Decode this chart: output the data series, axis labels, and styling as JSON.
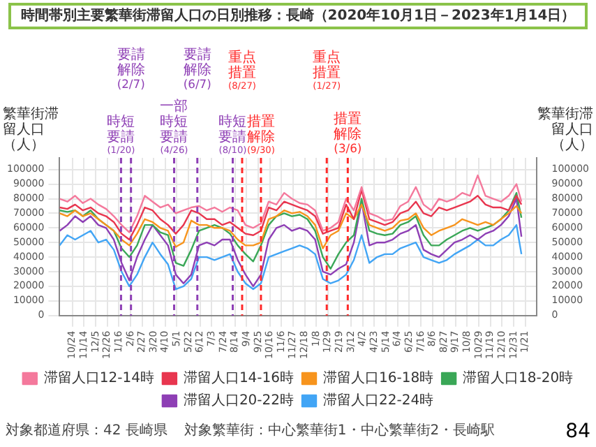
{
  "chart_data": {
    "type": "line",
    "title": "時間帯別主要繁華街滞留人口の日別推移：長崎（2020年10月1日－2023年1月14日）",
    "ylabel": "繁華街滞留人口（人）",
    "y2label": "繁華街滞留人口（人）",
    "x": [
      "2020-10-01",
      "2020-10-15",
      "2020-10-29",
      "2020-11-12",
      "2020-11-26",
      "2020-12-10",
      "2020-12-24",
      "2021-01-07",
      "2021-01-21",
      "2021-02-04",
      "2021-02-18",
      "2021-03-04",
      "2021-03-18",
      "2021-04-01",
      "2021-04-15",
      "2021-04-29",
      "2021-05-13",
      "2021-05-27",
      "2021-06-10",
      "2021-06-24",
      "2021-07-08",
      "2021-07-22",
      "2021-08-05",
      "2021-08-19",
      "2021-09-02",
      "2021-09-16",
      "2021-09-30",
      "2021-10-14",
      "2021-10-28",
      "2021-11-11",
      "2021-11-25",
      "2021-12-09",
      "2021-12-23",
      "2022-01-06",
      "2022-01-20",
      "2022-02-03",
      "2022-02-17",
      "2022-03-03",
      "2022-03-17",
      "2022-03-31",
      "2022-04-14",
      "2022-04-28",
      "2022-05-12",
      "2022-05-26",
      "2022-06-09",
      "2022-06-23",
      "2022-07-07",
      "2022-07-21",
      "2022-08-04",
      "2022-08-18",
      "2022-09-01",
      "2022-09-15",
      "2022-09-29",
      "2022-10-13",
      "2022-10-27",
      "2022-11-10",
      "2022-11-24",
      "2022-12-08",
      "2022-12-22",
      "2023-01-05",
      "2023-01-14"
    ],
    "series": [
      {
        "name": "滞留人口12-14時",
        "color": "#f4799c",
        "values": [
          80000,
          78000,
          82000,
          77000,
          80000,
          76000,
          73000,
          68000,
          62000,
          57000,
          68000,
          82000,
          78000,
          74000,
          76000,
          70000,
          72000,
          74000,
          75000,
          72000,
          74000,
          71000,
          74000,
          72000,
          62000,
          60000,
          63000,
          78000,
          76000,
          84000,
          80000,
          77000,
          76000,
          72000,
          58000,
          60000,
          64000,
          80000,
          72000,
          88000,
          70000,
          68000,
          65000,
          66000,
          75000,
          78000,
          88000,
          76000,
          72000,
          80000,
          78000,
          80000,
          84000,
          82000,
          96000,
          82000,
          80000,
          78000,
          82000,
          90000,
          78000
        ]
      },
      {
        "name": "滞留人口14-16時",
        "color": "#e8364f",
        "values": [
          74000,
          73000,
          76000,
          72000,
          74000,
          70000,
          68000,
          64000,
          56000,
          52000,
          62000,
          74000,
          72000,
          66000,
          62000,
          56000,
          62000,
          72000,
          70000,
          66000,
          66000,
          62000,
          64000,
          60000,
          56000,
          55000,
          58000,
          74000,
          72000,
          78000,
          76000,
          74000,
          72000,
          68000,
          56000,
          58000,
          60000,
          76000,
          66000,
          86000,
          66000,
          64000,
          62000,
          64000,
          70000,
          72000,
          78000,
          70000,
          68000,
          74000,
          72000,
          74000,
          76000,
          78000,
          82000,
          76000,
          74000,
          74000,
          72000,
          82000,
          76000
        ]
      },
      {
        "name": "滞留人口16-18時",
        "color": "#f7941d",
        "values": [
          70000,
          68000,
          72000,
          68000,
          70000,
          66000,
          62000,
          58000,
          52000,
          48000,
          56000,
          66000,
          64000,
          60000,
          58000,
          47000,
          50000,
          65000,
          62000,
          62000,
          60000,
          60000,
          58000,
          52000,
          48000,
          48000,
          50000,
          66000,
          68000,
          72000,
          70000,
          71000,
          68000,
          62000,
          46000,
          55000,
          58000,
          70000,
          66000,
          76000,
          62000,
          60000,
          58000,
          60000,
          65000,
          66000,
          70000,
          60000,
          55000,
          58000,
          60000,
          62000,
          66000,
          64000,
          62000,
          64000,
          62000,
          66000,
          70000,
          75000,
          70000
        ]
      },
      {
        "name": "滞留人口18-20時",
        "color": "#3aa757",
        "values": [
          72000,
          71000,
          72000,
          68000,
          72000,
          66000,
          62000,
          58000,
          46000,
          40000,
          48000,
          62000,
          62000,
          57000,
          55000,
          36000,
          34000,
          45000,
          58000,
          60000,
          62000,
          60000,
          56000,
          48000,
          42000,
          37000,
          48000,
          62000,
          68000,
          70000,
          68000,
          69000,
          66000,
          58000,
          40000,
          32000,
          42000,
          50000,
          55000,
          80000,
          58000,
          56000,
          55000,
          56000,
          62000,
          64000,
          68000,
          55000,
          48000,
          48000,
          52000,
          55000,
          58000,
          60000,
          58000,
          60000,
          62000,
          66000,
          72000,
          84000,
          67000
        ]
      },
      {
        "name": "滞留人口20-22時",
        "color": "#8e3fb5",
        "values": [
          58000,
          62000,
          68000,
          64000,
          68000,
          62000,
          60000,
          52000,
          36000,
          24000,
          40000,
          52000,
          62000,
          55000,
          48000,
          28000,
          22000,
          28000,
          48000,
          50000,
          48000,
          52000,
          52000,
          38000,
          28000,
          20000,
          28000,
          52000,
          60000,
          62000,
          58000,
          60000,
          58000,
          52000,
          30000,
          28000,
          32000,
          35000,
          50000,
          78000,
          48000,
          50000,
          50000,
          52000,
          56000,
          58000,
          62000,
          45000,
          42000,
          40000,
          45000,
          50000,
          52000,
          55000,
          52000,
          56000,
          58000,
          62000,
          68000,
          80000,
          54000
        ]
      },
      {
        "name": "滞留人口22-24時",
        "color": "#42a5f5",
        "values": [
          48000,
          55000,
          52000,
          55000,
          58000,
          50000,
          52000,
          45000,
          30000,
          20000,
          28000,
          40000,
          50000,
          42000,
          35000,
          18000,
          20000,
          25000,
          40000,
          40000,
          38000,
          40000,
          42000,
          30000,
          22000,
          18000,
          22000,
          40000,
          42000,
          44000,
          46000,
          48000,
          46000,
          42000,
          25000,
          22000,
          24000,
          28000,
          38000,
          55000,
          36000,
          40000,
          42000,
          42000,
          46000,
          48000,
          50000,
          40000,
          38000,
          36000,
          38000,
          42000,
          45000,
          48000,
          52000,
          48000,
          48000,
          52000,
          55000,
          62000,
          42000
        ]
      }
    ],
    "xlim": [
      "2020-10-01",
      "2023-02-10"
    ],
    "xticks": [
      {
        "value": "2020-10-24",
        "label": "10/24"
      },
      {
        "value": "2020-11-14",
        "label": "11/14"
      },
      {
        "value": "2020-12-05",
        "label": "12/5"
      },
      {
        "value": "2020-12-26",
        "label": "12/26"
      },
      {
        "value": "2021-01-16",
        "label": "1/16"
      },
      {
        "value": "2021-02-06",
        "label": "2/6"
      },
      {
        "value": "2021-02-27",
        "label": "2/27"
      },
      {
        "value": "2021-03-20",
        "label": "3/20"
      },
      {
        "value": "2021-04-10",
        "label": "4/10"
      },
      {
        "value": "2021-05-01",
        "label": "5/1"
      },
      {
        "value": "2021-05-22",
        "label": "5/22"
      },
      {
        "value": "2021-06-12",
        "label": "6/12"
      },
      {
        "value": "2021-07-03",
        "label": "7/3"
      },
      {
        "value": "2021-07-24",
        "label": "7/24"
      },
      {
        "value": "2021-08-14",
        "label": "8/14"
      },
      {
        "value": "2021-09-04",
        "label": "9/4"
      },
      {
        "value": "2021-09-25",
        "label": "9/25"
      },
      {
        "value": "2021-10-16",
        "label": "10/16"
      },
      {
        "value": "2021-11-06",
        "label": "11/6"
      },
      {
        "value": "2021-11-27",
        "label": "11/27"
      },
      {
        "value": "2021-12-18",
        "label": "12/18"
      },
      {
        "value": "2022-01-08",
        "label": "1/8"
      },
      {
        "value": "2022-01-29",
        "label": "1/29"
      },
      {
        "value": "2022-02-19",
        "label": "2/19"
      },
      {
        "value": "2022-03-12",
        "label": "3/12"
      },
      {
        "value": "2022-04-02",
        "label": "4/2"
      },
      {
        "value": "2022-04-23",
        "label": "4/23"
      },
      {
        "value": "2022-05-14",
        "label": "5/14"
      },
      {
        "value": "2022-06-04",
        "label": "6/4"
      },
      {
        "value": "2022-06-25",
        "label": "6/25"
      },
      {
        "value": "2022-07-16",
        "label": "7/16"
      },
      {
        "value": "2022-08-06",
        "label": "8/6"
      },
      {
        "value": "2022-08-27",
        "label": "8/27"
      },
      {
        "value": "2022-09-17",
        "label": "9/17"
      },
      {
        "value": "2022-10-08",
        "label": "10/8"
      },
      {
        "value": "2022-10-29",
        "label": "10/29"
      },
      {
        "value": "2022-11-19",
        "label": "11/19"
      },
      {
        "value": "2022-12-10",
        "label": "12/10"
      },
      {
        "value": "2022-12-31",
        "label": "12/31"
      },
      {
        "value": "2023-01-21",
        "label": "1/21"
      }
    ],
    "ylim": [
      0,
      108000
    ],
    "yticks": [
      0,
      10000,
      20000,
      30000,
      40000,
      50000,
      60000,
      70000,
      80000,
      90000,
      100000
    ],
    "y2lim": [
      0,
      108000
    ],
    "y2ticks": [
      0,
      10000,
      20000,
      30000,
      40000,
      50000,
      60000,
      70000,
      80000,
      90000,
      100000
    ],
    "grid": true,
    "legend": "bottom",
    "line_style": "solid",
    "ref_lines": [
      {
        "axis": "x",
        "value": "2021-01-20",
        "label": "時短要請(1/20)",
        "color": "#8e3fb5",
        "line_style": "dashed"
      },
      {
        "axis": "x",
        "value": "2021-02-07",
        "label": "要請解除(2/7)",
        "color": "#8e3fb5",
        "line_style": "dashed"
      },
      {
        "axis": "x",
        "value": "2021-04-26",
        "label": "一部時短要請(4/26)",
        "color": "#8e3fb5",
        "line_style": "dashed"
      },
      {
        "axis": "x",
        "value": "2021-06-07",
        "label": "要請解除(6/7)",
        "color": "#8e3fb5",
        "line_style": "dashed"
      },
      {
        "axis": "x",
        "value": "2021-08-10",
        "label": "時短要請(8/10)",
        "color": "#8e3fb5",
        "line_style": "dashed"
      },
      {
        "axis": "x",
        "value": "2021-08-27",
        "label": "重点措置(8/27)",
        "color": "#ff2a2a",
        "line_style": "dashed"
      },
      {
        "axis": "x",
        "value": "2021-09-30",
        "label": "措置解除(9/30)",
        "color": "#ff2a2a",
        "line_style": "dashed"
      },
      {
        "axis": "x",
        "value": "2022-01-27",
        "label": "重点措置(1/27)",
        "color": "#ff2a2a",
        "line_style": "dashed"
      },
      {
        "axis": "x",
        "value": "2022-03-06",
        "label": "措置解除(3/6)",
        "color": "#ff2a2a",
        "line_style": "dashed"
      }
    ],
    "annotations": [
      "対象都道府県：42 長崎県",
      "対象繁華街：中心繁華街1・中心繁華街2・長崎駅",
      "84"
    ]
  }
}
